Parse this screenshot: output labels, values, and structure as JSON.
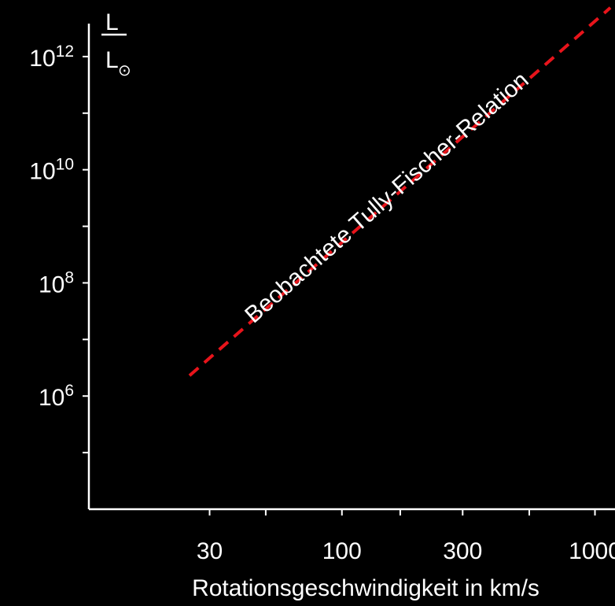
{
  "chart_data": {
    "type": "line",
    "xlabel": "Rotationsgeschwindigkeit in km/s",
    "ylabel": {
      "numerator": "L",
      "denominator": "L",
      "subscript": "⊙"
    },
    "x_scale": "log",
    "y_scale": "log",
    "xlim": [
      10,
      1200
    ],
    "ylim": [
      10000.0,
      10000000000000.0
    ],
    "x_ticks": [
      {
        "value": 30,
        "label": "30"
      },
      {
        "value": 50
      },
      {
        "value": 100,
        "label": "100"
      },
      {
        "value": 170
      },
      {
        "value": 300,
        "label": "300"
      },
      {
        "value": 550
      },
      {
        "value": 1000,
        "label": "1000"
      }
    ],
    "y_ticks": [
      {
        "value": 100000.0
      },
      {
        "value": 1000000.0,
        "base": "10",
        "exp": "6"
      },
      {
        "value": 10000000.0
      },
      {
        "value": 100000000.0,
        "base": "10",
        "exp": "8"
      },
      {
        "value": 1000000000.0
      },
      {
        "value": 10000000000.0,
        "base": "10",
        "exp": "10"
      },
      {
        "value": 100000000000.0
      },
      {
        "value": 1000000000000.0,
        "base": "10",
        "exp": "12"
      }
    ],
    "series": [
      {
        "name": "Beobachtete Tully-Fischer-Relation",
        "style": "dashed",
        "color": "#e8141b",
        "x": [
          25,
          1150
        ],
        "y": [
          2300000.0,
          7300000000000.0
        ]
      }
    ],
    "grid": false,
    "background": "#000000",
    "axis_color": "#ffffff"
  }
}
